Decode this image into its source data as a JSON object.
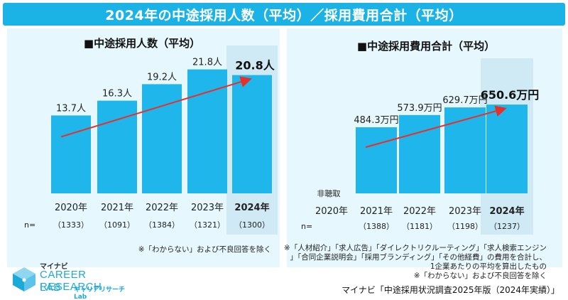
{
  "header": {
    "title": "2024年の中途採用人数（平均）／採用費用合計（平均）"
  },
  "chart_data": [
    {
      "type": "bar",
      "title": "■中途採用人数（平均）",
      "categories": [
        "2020年",
        "2021年",
        "2022年",
        "2023年",
        "2024年"
      ],
      "values": [
        13.7,
        16.3,
        19.2,
        21.8,
        20.8
      ],
      "value_labels": [
        "13.7人",
        "16.3人",
        "19.2人",
        "21.8人",
        "20.8人"
      ],
      "n_prefix": "n=",
      "n_values": [
        "（1333）",
        "（1091）",
        "（1384）",
        "（1321）",
        "（1300）"
      ],
      "highlight_index": 4,
      "trend_arrow": true,
      "ylim": [
        0,
        26
      ],
      "note": "※「わからない」および不良回答を除く"
    },
    {
      "type": "bar",
      "title": "■中途採用費用合計（平均）",
      "categories": [
        "2020年",
        "2021年",
        "2022年",
        "2023年",
        "2024年"
      ],
      "values": [
        null,
        484.3,
        573.9,
        629.7,
        650.6
      ],
      "value_labels": [
        "",
        "484.3万円",
        "573.9万円",
        "629.7万円",
        "650.6万円"
      ],
      "missing_label": "非聴取",
      "n_prefix": "n=",
      "n_values": [
        "",
        "（1388）",
        "（1181）",
        "（1198）",
        "（1237）"
      ],
      "highlight_index": 4,
      "trend_arrow": true,
      "ylim": [
        0,
        800
      ],
      "notes": [
        "※「人材紹介」「求人広告」「ダイレクトリクルーティング」「求人検索エンジン",
        "」「合同企業説明会」「採用ブランディング」「その他経費」の費用を合計し、",
        "1企業あたりの平均を算出したもの",
        "※「わからない」および不良回答を除く"
      ]
    }
  ],
  "logo": {
    "brand": "マイナビ",
    "line1": "CAREER RESEARCH",
    "line2": "LAB",
    "sub": "キャリアリサーチLab"
  },
  "source": "マイナビ「中途採用状況調査2025年版（2024年実績）」",
  "colors": {
    "bar": "#1fb6eb",
    "highlight": "#cfeaf4",
    "title_bar": "#1bb3e6",
    "arrow": "#e8302a",
    "panel_bg": "#e6f7fd"
  }
}
